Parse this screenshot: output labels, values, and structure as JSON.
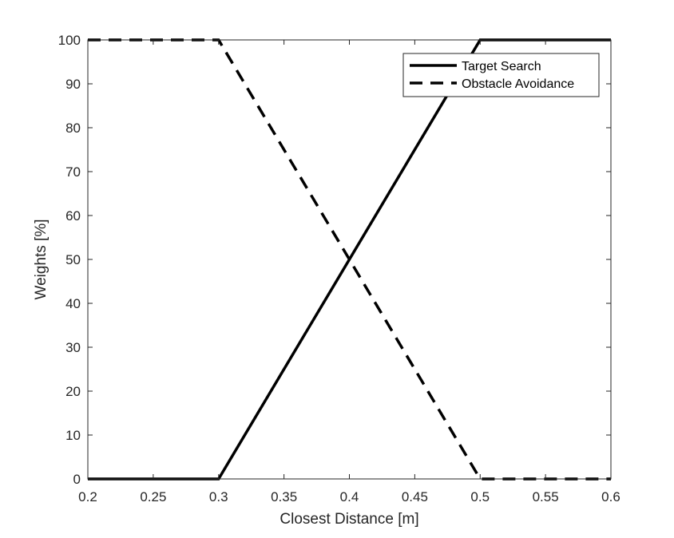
{
  "chart_data": {
    "type": "line",
    "xlabel": "Closest Distance [m]",
    "ylabel": "Weights [%]",
    "xlim": [
      0.2,
      0.6
    ],
    "ylim": [
      0,
      100
    ],
    "xticks": [
      0.2,
      0.25,
      0.3,
      0.35,
      0.4,
      0.45,
      0.5,
      0.55,
      0.6
    ],
    "xtick_labels": [
      "0.2",
      "0.25",
      "0.3",
      "0.35",
      "0.4",
      "0.45",
      "0.5",
      "0.55",
      "0.6"
    ],
    "yticks": [
      0,
      10,
      20,
      30,
      40,
      50,
      60,
      70,
      80,
      90,
      100
    ],
    "ytick_labels": [
      "0",
      "10",
      "20",
      "30",
      "40",
      "50",
      "60",
      "70",
      "80",
      "90",
      "100"
    ],
    "grid": false,
    "box": true,
    "legend_position": "top-right",
    "series": [
      {
        "name": "Target Search",
        "style": "solid",
        "color": "#000000",
        "x": [
          0.2,
          0.3,
          0.5,
          0.6
        ],
        "y": [
          0,
          0,
          100,
          100
        ]
      },
      {
        "name": "Obstacle Avoidance",
        "style": "dashed",
        "color": "#000000",
        "x": [
          0.2,
          0.3,
          0.5,
          0.6
        ],
        "y": [
          100,
          100,
          0,
          0
        ]
      }
    ]
  }
}
